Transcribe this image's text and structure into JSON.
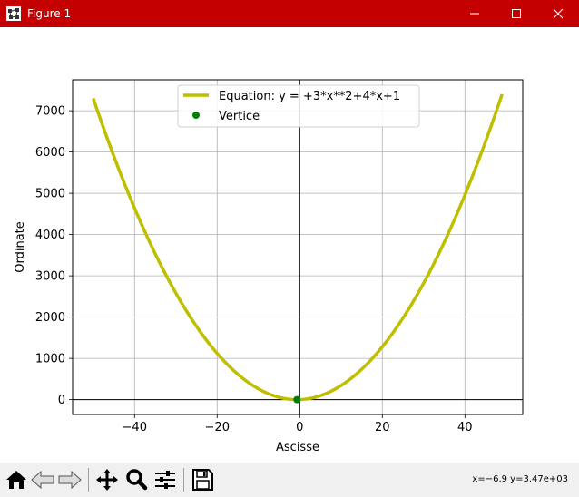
{
  "window": {
    "title": "Figure 1",
    "accent": "#c40000"
  },
  "toolbar": {
    "buttons": [
      "home-icon",
      "back-arrow-icon",
      "forward-arrow-icon",
      "pan-move-icon",
      "zoom-magnifier-icon",
      "configure-subplots-icon",
      "save-floppy-icon"
    ],
    "coords": "x=−6.9 y=3.47e+03"
  },
  "chart_data": {
    "type": "line",
    "xlabel": "Ascisse",
    "ylabel": "Ordinate",
    "xlim": [
      -55,
      54
    ],
    "ylim": [
      -360,
      7750
    ],
    "xticks": [
      -40,
      -20,
      0,
      20,
      40
    ],
    "xtick_labels": [
      "−40",
      "−20",
      "0",
      "20",
      "40"
    ],
    "yticks": [
      0,
      1000,
      2000,
      3000,
      4000,
      5000,
      6000,
      7000
    ],
    "ytick_labels": [
      "0",
      "1000",
      "2000",
      "3000",
      "4000",
      "5000",
      "6000",
      "7000"
    ],
    "grid": true,
    "legend_position": "top-center",
    "series": [
      {
        "name": "Equation: y = +3*x**2+4*x+1",
        "kind": "line",
        "color": "#bfbf00",
        "x_range": [
          -50,
          49
        ],
        "coefficients": [
          3,
          4,
          1
        ]
      },
      {
        "name": "Vertice",
        "kind": "point",
        "color": "#008000",
        "points": [
          {
            "x": -0.667,
            "y": -0.333
          }
        ]
      }
    ]
  }
}
